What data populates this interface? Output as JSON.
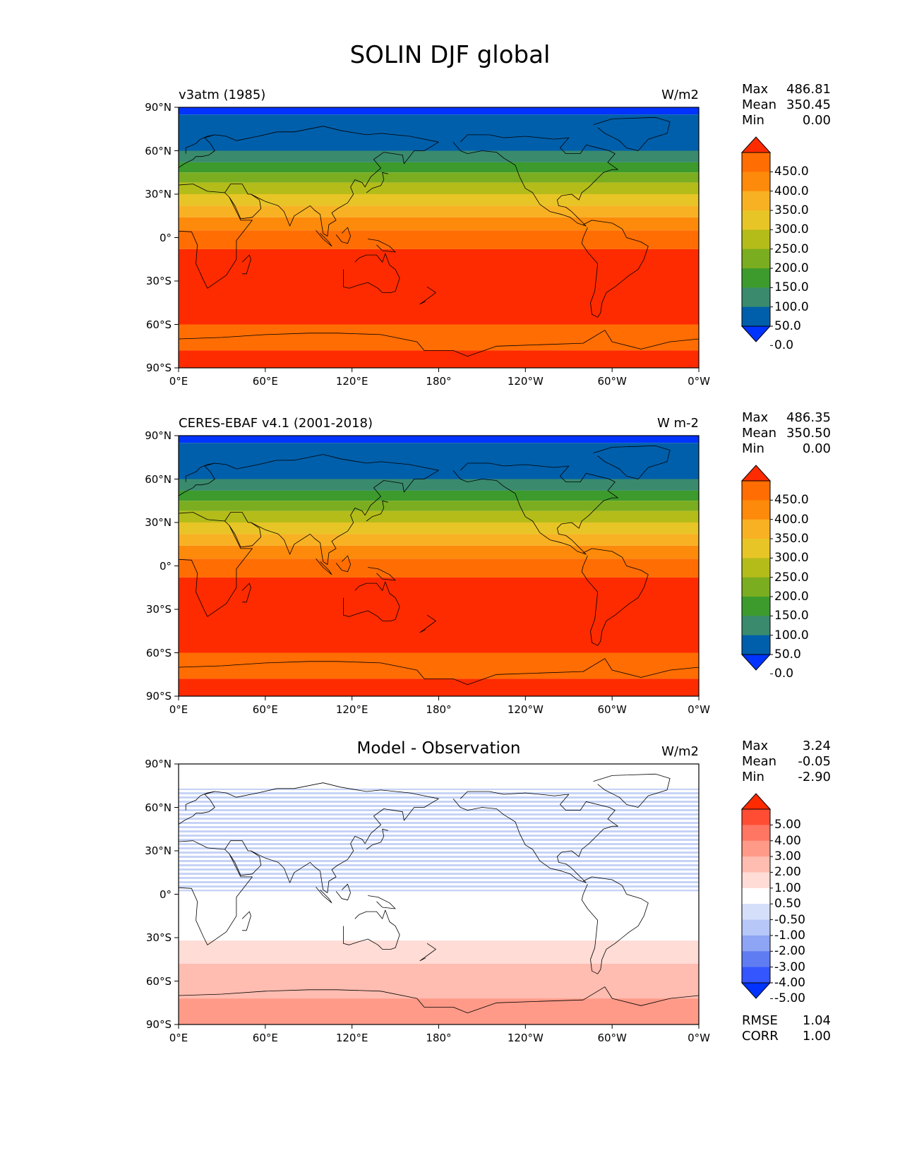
{
  "page": {
    "title": "SOLIN DJF global"
  },
  "colors": {
    "sequential": [
      "#0033ff",
      "#005faa",
      "#3a8a6e",
      "#3c9b2c",
      "#7bad20",
      "#b4bc1a",
      "#e8c526",
      "#f8b123",
      "#fd8a0a",
      "#ff6d03",
      "#ff2b00"
    ],
    "diverging": [
      "#0033ff",
      "#3356ff",
      "#5f7cf2",
      "#8ea4f5",
      "#b7c7f7",
      "#d6dff9",
      "#ffffff",
      "#ffdcd6",
      "#ffbcb0",
      "#ff9a88",
      "#ff7662",
      "#ff4d33",
      "#ff2b00"
    ]
  },
  "panels": [
    {
      "id": "model",
      "label": "v3atm (1985)",
      "units": "W/m2",
      "center_title": "",
      "stats": [
        {
          "label": "Max",
          "value": "486.81"
        },
        {
          "label": "Mean",
          "value": "350.45"
        },
        {
          "label": "Min",
          "value": "0.00"
        }
      ],
      "extra_stats": [],
      "colorbar_type": "sequential",
      "colorbar_ticks": [
        "450.0",
        "400.0",
        "350.0",
        "300.0",
        "250.0",
        "200.0",
        "150.0",
        "100.0",
        "50.0",
        "0.0"
      ],
      "bands": [
        {
          "lat_top": 90,
          "lat_bottom": 85,
          "color_index": 0
        },
        {
          "lat_top": 85,
          "lat_bottom": 60,
          "color_index": 1
        },
        {
          "lat_top": 60,
          "lat_bottom": 52,
          "color_index": 2
        },
        {
          "lat_top": 52,
          "lat_bottom": 45,
          "color_index": 3
        },
        {
          "lat_top": 45,
          "lat_bottom": 38,
          "color_index": 4
        },
        {
          "lat_top": 38,
          "lat_bottom": 30,
          "color_index": 5
        },
        {
          "lat_top": 30,
          "lat_bottom": 22,
          "color_index": 6
        },
        {
          "lat_top": 22,
          "lat_bottom": 14,
          "color_index": 7
        },
        {
          "lat_top": 14,
          "lat_bottom": 5,
          "color_index": 8
        },
        {
          "lat_top": 5,
          "lat_bottom": -8,
          "color_index": 9
        },
        {
          "lat_top": -8,
          "lat_bottom": -60,
          "color_index": 10
        },
        {
          "lat_top": -60,
          "lat_bottom": -78,
          "color_index": 9
        },
        {
          "lat_top": -78,
          "lat_bottom": -90,
          "color_index": 10
        }
      ]
    },
    {
      "id": "obs",
      "label": "CERES-EBAF v4.1 (2001-2018)",
      "units": "W m-2",
      "center_title": "",
      "stats": [
        {
          "label": "Max",
          "value": "486.35"
        },
        {
          "label": "Mean",
          "value": "350.50"
        },
        {
          "label": "Min",
          "value": "0.00"
        }
      ],
      "extra_stats": [],
      "colorbar_type": "sequential",
      "colorbar_ticks": [
        "450.0",
        "400.0",
        "350.0",
        "300.0",
        "250.0",
        "200.0",
        "150.0",
        "100.0",
        "50.0",
        "0.0"
      ],
      "bands": [
        {
          "lat_top": 90,
          "lat_bottom": 85,
          "color_index": 0
        },
        {
          "lat_top": 85,
          "lat_bottom": 60,
          "color_index": 1
        },
        {
          "lat_top": 60,
          "lat_bottom": 52,
          "color_index": 2
        },
        {
          "lat_top": 52,
          "lat_bottom": 45,
          "color_index": 3
        },
        {
          "lat_top": 45,
          "lat_bottom": 38,
          "color_index": 4
        },
        {
          "lat_top": 38,
          "lat_bottom": 30,
          "color_index": 5
        },
        {
          "lat_top": 30,
          "lat_bottom": 22,
          "color_index": 6
        },
        {
          "lat_top": 22,
          "lat_bottom": 14,
          "color_index": 7
        },
        {
          "lat_top": 14,
          "lat_bottom": 5,
          "color_index": 8
        },
        {
          "lat_top": 5,
          "lat_bottom": -8,
          "color_index": 9
        },
        {
          "lat_top": -8,
          "lat_bottom": -60,
          "color_index": 10
        },
        {
          "lat_top": -60,
          "lat_bottom": -78,
          "color_index": 9
        },
        {
          "lat_top": -78,
          "lat_bottom": -90,
          "color_index": 10
        }
      ]
    },
    {
      "id": "diff",
      "label": "",
      "units": "W/m2",
      "center_title": "Model - Observation",
      "stats": [
        {
          "label": "Max",
          "value": "3.24"
        },
        {
          "label": "Mean",
          "value": "-0.05"
        },
        {
          "label": "Min",
          "value": "-2.90"
        }
      ],
      "extra_stats": [
        {
          "label": "RMSE",
          "value": "1.04"
        },
        {
          "label": "CORR",
          "value": "1.00"
        }
      ],
      "colorbar_type": "diverging",
      "colorbar_ticks": [
        "5.00",
        "4.00",
        "3.00",
        "2.00",
        "1.00",
        "0.50",
        "-0.50",
        "-1.00",
        "-2.00",
        "-3.00",
        "-4.00",
        "-5.00"
      ],
      "bands": [
        {
          "lat_top": 90,
          "lat_bottom": 73,
          "color_index": 6
        },
        {
          "lat_top": 73,
          "lat_bottom": 2,
          "color_index": 5,
          "hatched": true
        },
        {
          "lat_top": 2,
          "lat_bottom": -32,
          "color_index": 6
        },
        {
          "lat_top": -32,
          "lat_bottom": -48,
          "color_index": 7
        },
        {
          "lat_top": -48,
          "lat_bottom": -72,
          "color_index": 8
        },
        {
          "lat_top": -72,
          "lat_bottom": -90,
          "color_index": 9
        }
      ]
    }
  ],
  "axes": {
    "lat_ticks": [
      "90°N",
      "60°N",
      "30°N",
      "0°",
      "30°S",
      "60°S",
      "90°S"
    ],
    "lon_ticks": [
      "0°E",
      "60°E",
      "120°E",
      "180°",
      "120°W",
      "60°W",
      "0°W"
    ]
  },
  "coastlines": [
    {
      "name": "africa",
      "pts": [
        [
          -17,
          21
        ],
        [
          -10,
          30
        ],
        [
          -5,
          36
        ],
        [
          10,
          37
        ],
        [
          20,
          32
        ],
        [
          32,
          31
        ],
        [
          35,
          28
        ],
        [
          43,
          12
        ],
        [
          51,
          12
        ],
        [
          40,
          -2
        ],
        [
          40,
          -15
        ],
        [
          33,
          -26
        ],
        [
          20,
          -35
        ],
        [
          17,
          -29
        ],
        [
          12,
          -18
        ],
        [
          13,
          -5
        ],
        [
          9,
          4
        ],
        [
          -8,
          5
        ],
        [
          -17,
          14
        ]
      ]
    },
    {
      "name": "madagascar",
      "pts": [
        [
          44,
          -25
        ],
        [
          47,
          -25
        ],
        [
          50,
          -15
        ],
        [
          49,
          -12
        ],
        [
          44,
          -17
        ]
      ]
    },
    {
      "name": "europe",
      "pts": [
        [
          -10,
          36
        ],
        [
          -9,
          43
        ],
        [
          -2,
          47
        ],
        [
          4,
          51
        ],
        [
          10,
          54
        ],
        [
          12,
          56
        ],
        [
          16,
          56
        ],
        [
          21,
          57
        ],
        [
          25,
          60
        ],
        [
          22,
          65
        ],
        [
          18,
          69
        ],
        [
          25,
          71
        ],
        [
          33,
          70
        ],
        [
          40,
          67
        ]
      ]
    },
    {
      "name": "scandinavia",
      "pts": [
        [
          5,
          58
        ],
        [
          5,
          62
        ],
        [
          12,
          65
        ],
        [
          15,
          68
        ],
        [
          20,
          70
        ],
        [
          25,
          71
        ]
      ]
    },
    {
      "name": "asia-north",
      "pts": [
        [
          40,
          67
        ],
        [
          55,
          70
        ],
        [
          68,
          73
        ],
        [
          80,
          73
        ],
        [
          100,
          77
        ],
        [
          112,
          74
        ],
        [
          130,
          71
        ],
        [
          140,
          72
        ],
        [
          160,
          70
        ],
        [
          170,
          68
        ],
        [
          180,
          66
        ]
      ]
    },
    {
      "name": "asia-east",
      "pts": [
        [
          180,
          66
        ],
        [
          170,
          60
        ],
        [
          163,
          60
        ],
        [
          156,
          51
        ],
        [
          155,
          57
        ],
        [
          142,
          59
        ],
        [
          135,
          54
        ],
        [
          140,
          48
        ],
        [
          133,
          42
        ],
        [
          129,
          35
        ],
        [
          127,
          38
        ],
        [
          122,
          40
        ],
        [
          119,
          35
        ],
        [
          121,
          30
        ],
        [
          117,
          24
        ],
        [
          110,
          20
        ],
        [
          106,
          17
        ],
        [
          109,
          12
        ],
        [
          104,
          9
        ],
        [
          103,
          1
        ],
        [
          100,
          3
        ],
        [
          99,
          9
        ],
        [
          98,
          16
        ],
        [
          94,
          19
        ],
        [
          91,
          22
        ],
        [
          80,
          15
        ],
        [
          77,
          8
        ],
        [
          73,
          18
        ],
        [
          69,
          22
        ],
        [
          60,
          25
        ],
        [
          56,
          27
        ],
        [
          50,
          30
        ],
        [
          48,
          30
        ],
        [
          44,
          37
        ],
        [
          36,
          37
        ],
        [
          32,
          31
        ]
      ]
    },
    {
      "name": "arabia",
      "pts": [
        [
          35,
          28
        ],
        [
          39,
          22
        ],
        [
          43,
          13
        ],
        [
          51,
          14
        ],
        [
          57,
          20
        ],
        [
          56,
          26
        ],
        [
          50,
          30
        ]
      ]
    },
    {
      "name": "japan",
      "pts": [
        [
          130,
          31
        ],
        [
          134,
          34
        ],
        [
          140,
          36
        ],
        [
          142,
          40
        ],
        [
          141,
          45
        ],
        [
          145,
          44
        ]
      ]
    },
    {
      "name": "borneo",
      "pts": [
        [
          109,
          2
        ],
        [
          113,
          -3
        ],
        [
          117,
          -4
        ],
        [
          119,
          1
        ],
        [
          117,
          7
        ],
        [
          113,
          3
        ]
      ]
    },
    {
      "name": "sumatra",
      "pts": [
        [
          95,
          5
        ],
        [
          100,
          -1
        ],
        [
          106,
          -6
        ],
        [
          104,
          -3
        ],
        [
          98,
          3
        ]
      ]
    },
    {
      "name": "newguinea",
      "pts": [
        [
          131,
          -1
        ],
        [
          138,
          -2
        ],
        [
          146,
          -6
        ],
        [
          150,
          -10
        ],
        [
          141,
          -9
        ],
        [
          137,
          -5
        ]
      ]
    },
    {
      "name": "australia",
      "pts": [
        [
          114,
          -22
        ],
        [
          114,
          -34
        ],
        [
          118,
          -35
        ],
        [
          124,
          -33
        ],
        [
          131,
          -31
        ],
        [
          138,
          -35
        ],
        [
          141,
          -38
        ],
        [
          147,
          -38
        ],
        [
          150,
          -37
        ],
        [
          153,
          -28
        ],
        [
          150,
          -22
        ],
        [
          146,
          -19
        ],
        [
          143,
          -11
        ],
        [
          141,
          -17
        ],
        [
          137,
          -12
        ],
        [
          130,
          -12
        ],
        [
          125,
          -14
        ],
        [
          122,
          -17
        ]
      ]
    },
    {
      "name": "newzealand",
      "pts": [
        [
          172,
          -34
        ],
        [
          178,
          -38
        ],
        [
          174,
          -41
        ],
        [
          167,
          -46
        ],
        [
          171,
          -44
        ]
      ]
    },
    {
      "name": "north-america",
      "pts": [
        [
          190,
          66
        ],
        [
          195,
          60
        ],
        [
          200,
          58
        ],
        [
          210,
          60
        ],
        [
          220,
          59
        ],
        [
          225,
          55
        ],
        [
          233,
          50
        ],
        [
          236,
          42
        ],
        [
          240,
          34
        ],
        [
          245,
          31
        ],
        [
          250,
          23
        ],
        [
          257,
          18
        ],
        [
          265,
          16
        ],
        [
          271,
          14
        ],
        [
          276,
          10
        ],
        [
          279,
          9
        ],
        [
          282,
          8
        ],
        [
          280,
          10
        ],
        [
          275,
          15
        ],
        [
          272,
          18
        ],
        [
          268,
          21
        ],
        [
          263,
          22
        ],
        [
          262,
          26
        ],
        [
          265,
          29
        ],
        [
          272,
          30
        ],
        [
          277,
          26
        ],
        [
          279,
          31
        ],
        [
          284,
          35
        ],
        [
          290,
          41
        ],
        [
          294,
          45
        ],
        [
          300,
          47
        ],
        [
          304,
          47
        ],
        [
          297,
          52
        ],
        [
          302,
          58
        ],
        [
          298,
          60
        ],
        [
          282,
          64
        ],
        [
          278,
          58
        ],
        [
          268,
          58
        ],
        [
          264,
          62
        ],
        [
          270,
          69
        ],
        [
          260,
          68
        ],
        [
          240,
          70
        ],
        [
          225,
          69
        ],
        [
          215,
          71
        ],
        [
          200,
          71
        ],
        [
          195,
          66
        ]
      ]
    },
    {
      "name": "greenland",
      "pts": [
        [
          287,
          78
        ],
        [
          300,
          82
        ],
        [
          330,
          83
        ],
        [
          340,
          80
        ],
        [
          338,
          72
        ],
        [
          325,
          68
        ],
        [
          318,
          60
        ],
        [
          310,
          62
        ],
        [
          305,
          67
        ],
        [
          295,
          72
        ],
        [
          290,
          76
        ]
      ]
    },
    {
      "name": "south-america",
      "pts": [
        [
          280,
          9
        ],
        [
          286,
          12
        ],
        [
          300,
          10
        ],
        [
          307,
          6
        ],
        [
          310,
          0
        ],
        [
          320,
          -3
        ],
        [
          325,
          -6
        ],
        [
          322,
          -15
        ],
        [
          318,
          -22
        ],
        [
          312,
          -26
        ],
        [
          307,
          -30
        ],
        [
          302,
          -34
        ],
        [
          296,
          -38
        ],
        [
          293,
          -45
        ],
        [
          292,
          -52
        ],
        [
          290,
          -55
        ],
        [
          286,
          -53
        ],
        [
          285,
          -45
        ],
        [
          288,
          -37
        ],
        [
          289,
          -28
        ],
        [
          290,
          -18
        ],
        [
          283,
          -10
        ],
        [
          279,
          -4
        ],
        [
          280,
          0
        ],
        [
          283,
          7
        ]
      ]
    },
    {
      "name": "antarctica",
      "pts": [
        [
          0,
          -70
        ],
        [
          30,
          -69
        ],
        [
          60,
          -67
        ],
        [
          90,
          -66
        ],
        [
          110,
          -66
        ],
        [
          140,
          -67
        ],
        [
          165,
          -72
        ],
        [
          170,
          -78
        ],
        [
          190,
          -78
        ],
        [
          200,
          -82
        ],
        [
          220,
          -75
        ],
        [
          250,
          -74
        ],
        [
          280,
          -73
        ],
        [
          295,
          -64
        ],
        [
          300,
          -72
        ],
        [
          320,
          -77
        ],
        [
          340,
          -72
        ],
        [
          360,
          -70
        ]
      ]
    }
  ]
}
